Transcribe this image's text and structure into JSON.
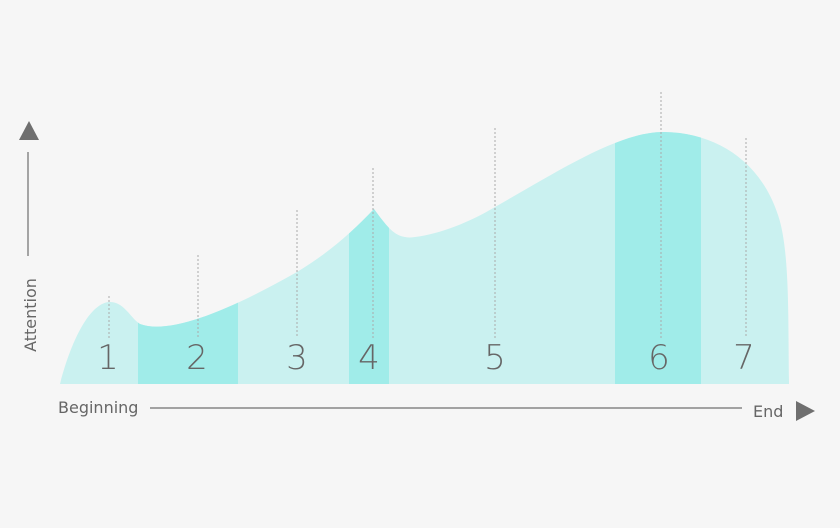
{
  "diagram": {
    "x_axis": {
      "start_label": "Beginning",
      "end_label": "End"
    },
    "y_axis": {
      "label": "Attention"
    },
    "segments": [
      {
        "label": "1",
        "highlighted": false
      },
      {
        "label": "2",
        "highlighted": true
      },
      {
        "label": "3",
        "highlighted": false
      },
      {
        "label": "4",
        "highlighted": true
      },
      {
        "label": "5",
        "highlighted": false
      },
      {
        "label": "6",
        "highlighted": true
      },
      {
        "label": "7",
        "highlighted": false
      }
    ],
    "colors": {
      "curve_fill": "#caf1f0",
      "highlight_fill": "#a0ece9",
      "axis": "#6f6f6f",
      "guide": "#aaaaaa",
      "text": "#666666",
      "background": "#f6f6f6"
    }
  }
}
